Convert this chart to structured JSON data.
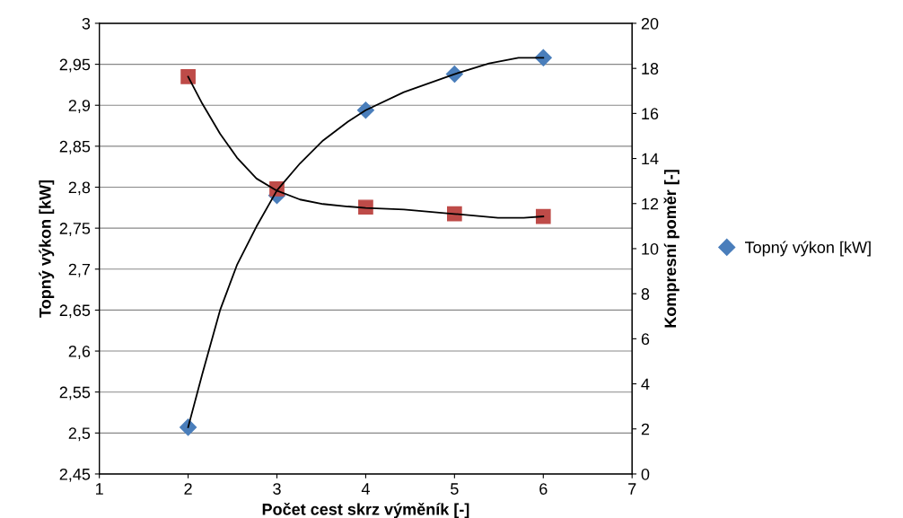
{
  "chart_data": {
    "type": "scatter",
    "xlabel": "Počet cest skrz výměník [-]",
    "ylabel": "Topný výkon [kW]",
    "y2label": "Kompresní poměr [-]",
    "xlim": [
      1,
      7
    ],
    "xticks": [
      1,
      2,
      3,
      4,
      5,
      6,
      7
    ],
    "ylim": [
      2.45,
      3
    ],
    "yticks": [
      {
        "value": 2.45,
        "label": "2,45"
      },
      {
        "value": 2.5,
        "label": "2,5"
      },
      {
        "value": 2.55,
        "label": "2,55"
      },
      {
        "value": 2.6,
        "label": "2,6"
      },
      {
        "value": 2.65,
        "label": "2,65"
      },
      {
        "value": 2.7,
        "label": "2,7"
      },
      {
        "value": 2.75,
        "label": "2,75"
      },
      {
        "value": 2.8,
        "label": "2,8"
      },
      {
        "value": 2.85,
        "label": "2,85"
      },
      {
        "value": 2.9,
        "label": "2,9"
      },
      {
        "value": 2.95,
        "label": "2,95"
      },
      3
    ],
    "y2lim": [
      0,
      20
    ],
    "y2ticks": [
      0,
      2,
      4,
      6,
      8,
      10,
      12,
      14,
      16,
      18,
      20
    ],
    "grid": "y",
    "legend": "right",
    "x": [
      2,
      3,
      4,
      5,
      6
    ],
    "series": [
      {
        "type": "line",
        "color": "#000000",
        "marker": "none",
        "x": [
          2,
          2.16,
          2.36,
          2.55,
          2.77,
          3,
          3.26,
          3.52,
          3.8,
          4,
          4.43,
          5,
          5.39,
          5.72,
          6
        ],
        "values": [
          2.507,
          2.572,
          2.65,
          2.705,
          2.752,
          2.796,
          2.829,
          2.857,
          2.88,
          2.894,
          2.916,
          2.938,
          2.951,
          2.958,
          2.958
        ]
      },
      {
        "type": "line",
        "color": "#000000",
        "marker": "none",
        "axis": "y2",
        "x": [
          2,
          2.16,
          2.36,
          2.55,
          2.77,
          3,
          3.26,
          3.52,
          3.8,
          4,
          4.43,
          5,
          5.49,
          5.78,
          6
        ],
        "values": [
          17.63,
          16.43,
          15.1,
          14.04,
          13.11,
          12.57,
          12.18,
          11.98,
          11.87,
          11.81,
          11.74,
          11.54,
          11.37,
          11.37,
          11.43
        ]
      },
      {
        "name": "Topný výkon [kW]",
        "color": "#4a7ebb",
        "marker": "diamond",
        "values": [
          2.507,
          2.79,
          2.894,
          2.938,
          2.958
        ]
      },
      {
        "color": "#be4b48",
        "marker": "square",
        "axis": "y2",
        "values": [
          17.63,
          12.65,
          11.84,
          11.55,
          11.43
        ]
      }
    ]
  }
}
